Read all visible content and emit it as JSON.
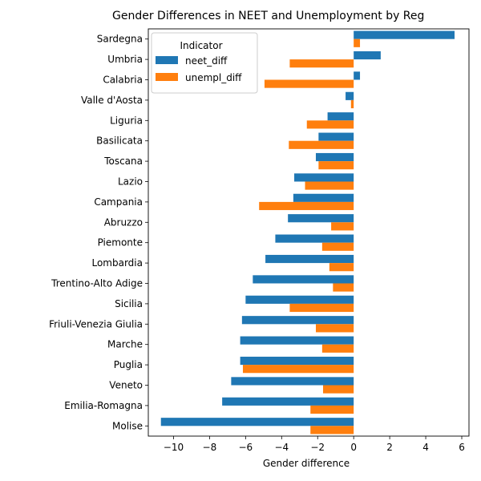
{
  "chart_data": {
    "type": "bar",
    "orientation": "horizontal",
    "title": "Gender Differences in NEET and Unemployment by Reg",
    "xlabel": "Gender difference",
    "ylabel": "",
    "xlim": [
      -11.4,
      6.4
    ],
    "xticks": [
      -10,
      -8,
      -6,
      -4,
      -2,
      0,
      2,
      4,
      6
    ],
    "xtick_labels": [
      "−10",
      "−8",
      "−6",
      "−4",
      "−2",
      "0",
      "2",
      "4",
      "6"
    ],
    "grid": false,
    "legend": {
      "title": "Indicator",
      "placement": "top-left"
    },
    "categories": [
      "Sardegna",
      "Umbria",
      "Calabria",
      "Valle d'Aosta",
      "Liguria",
      "Basilicata",
      "Toscana",
      "Lazio",
      "Campania",
      "Abruzzo",
      "Piemonte",
      "Lombardia",
      "Trentino-Alto Adige",
      "Sicilia",
      "Friuli-Venezia Giulia",
      "Marche",
      "Puglia",
      "Veneto",
      "Emilia-Romagna",
      "Molise"
    ],
    "series": [
      {
        "name": "neet_diff",
        "color": "#1f77b4",
        "values": [
          5.6,
          1.5,
          0.35,
          -0.45,
          -1.45,
          -1.95,
          -2.1,
          -3.3,
          -3.35,
          -3.65,
          -4.35,
          -4.9,
          -5.6,
          -6.0,
          -6.2,
          -6.3,
          -6.3,
          -6.8,
          -7.3,
          -10.7
        ]
      },
      {
        "name": "unempl_diff",
        "color": "#ff7f0e",
        "values": [
          0.35,
          -3.55,
          -4.95,
          -0.15,
          -2.6,
          -3.6,
          -1.95,
          -2.7,
          -5.25,
          -1.25,
          -1.75,
          -1.35,
          -1.15,
          -3.55,
          -2.1,
          -1.75,
          -6.15,
          -1.7,
          -2.4,
          -2.4
        ]
      }
    ]
  }
}
